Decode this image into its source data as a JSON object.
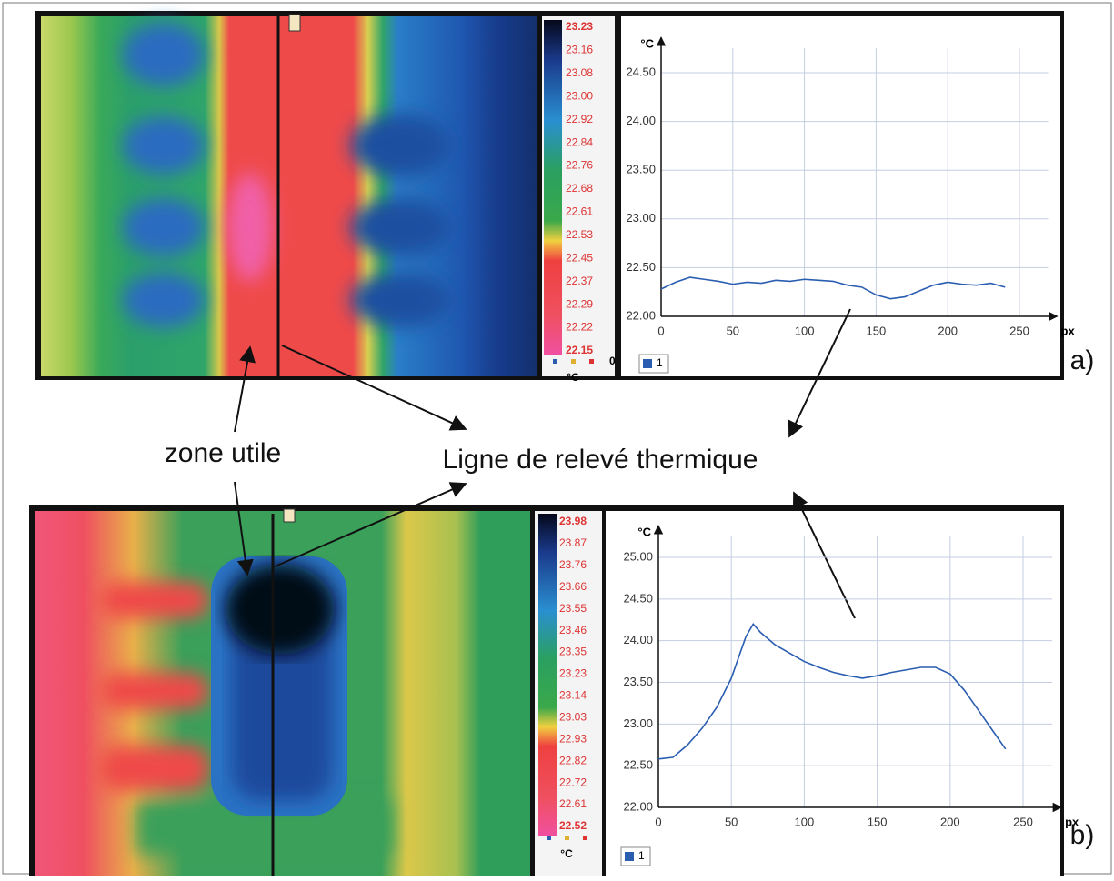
{
  "annotations": {
    "zone": "zone utile",
    "line": "Ligne de relevé thermique"
  },
  "panels": [
    {
      "label": "a)",
      "colorbar": {
        "labels": [
          "23.23",
          "23.16",
          "23.08",
          "23.00",
          "22.92",
          "22.84",
          "22.76",
          "22.68",
          "22.61",
          "22.53",
          "22.45",
          "22.37",
          "22.29",
          "22.22",
          "22.15"
        ],
        "unit": "°C",
        "counter": "0"
      }
    },
    {
      "label": "b)",
      "colorbar": {
        "labels": [
          "23.98",
          "23.87",
          "23.76",
          "23.66",
          "23.55",
          "23.46",
          "23.35",
          "23.23",
          "23.14",
          "23.03",
          "22.93",
          "22.82",
          "22.72",
          "22.61",
          "22.52"
        ],
        "unit": "°C"
      }
    }
  ],
  "chart_data": [
    {
      "type": "line",
      "x_label": "px",
      "y_label": "°C",
      "grid": true,
      "x": [
        0,
        10,
        20,
        30,
        40,
        50,
        60,
        70,
        80,
        90,
        100,
        110,
        120,
        130,
        140,
        150,
        160,
        170,
        180,
        190,
        200,
        210,
        220,
        230,
        240
      ],
      "series": [
        {
          "name": "1",
          "color": "#2a5db0",
          "values": [
            22.28,
            22.35,
            22.4,
            22.38,
            22.36,
            22.33,
            22.35,
            22.34,
            22.37,
            22.36,
            22.38,
            22.37,
            22.36,
            22.32,
            22.3,
            22.22,
            22.18,
            22.2,
            22.26,
            22.32,
            22.35,
            22.33,
            22.32,
            22.34,
            22.3
          ]
        }
      ],
      "xlim": [
        0,
        270
      ],
      "ylim": [
        22,
        24.75
      ],
      "xticks": [
        0,
        50,
        100,
        150,
        200,
        250
      ],
      "yticks": [
        {
          "value": 22,
          "label": "22.00"
        },
        {
          "value": 22.5,
          "label": "22.50"
        },
        {
          "value": 23,
          "label": "23.00"
        },
        {
          "value": 23.5,
          "label": "23.50"
        },
        {
          "value": 24,
          "label": "24.00"
        },
        {
          "value": 24.5,
          "label": "24.50"
        }
      ]
    },
    {
      "type": "line",
      "x_label": "px",
      "y_label": "°C",
      "grid": true,
      "x": [
        0,
        10,
        20,
        30,
        40,
        50,
        60,
        65,
        70,
        80,
        90,
        100,
        110,
        120,
        130,
        140,
        150,
        160,
        170,
        180,
        190,
        200,
        210,
        220,
        230,
        238
      ],
      "series": [
        {
          "name": "1",
          "color": "#2a5db0",
          "values": [
            22.58,
            22.6,
            22.75,
            22.95,
            23.2,
            23.55,
            24.05,
            24.2,
            24.1,
            23.95,
            23.85,
            23.75,
            23.68,
            23.62,
            23.58,
            23.55,
            23.58,
            23.62,
            23.65,
            23.68,
            23.68,
            23.6,
            23.4,
            23.15,
            22.9,
            22.7
          ]
        }
      ],
      "xlim": [
        0,
        270
      ],
      "ylim": [
        22,
        25.25
      ],
      "xticks": [
        0,
        50,
        100,
        150,
        200,
        250
      ],
      "yticks": [
        {
          "value": 22,
          "label": "22.00"
        },
        {
          "value": 22.5,
          "label": "22.50"
        },
        {
          "value": 23,
          "label": "23.00"
        },
        {
          "value": 23.5,
          "label": "23.50"
        },
        {
          "value": 24,
          "label": "24.00"
        },
        {
          "value": 24.5,
          "label": "24.50"
        },
        {
          "value": 25,
          "label": "25.00"
        }
      ]
    }
  ]
}
